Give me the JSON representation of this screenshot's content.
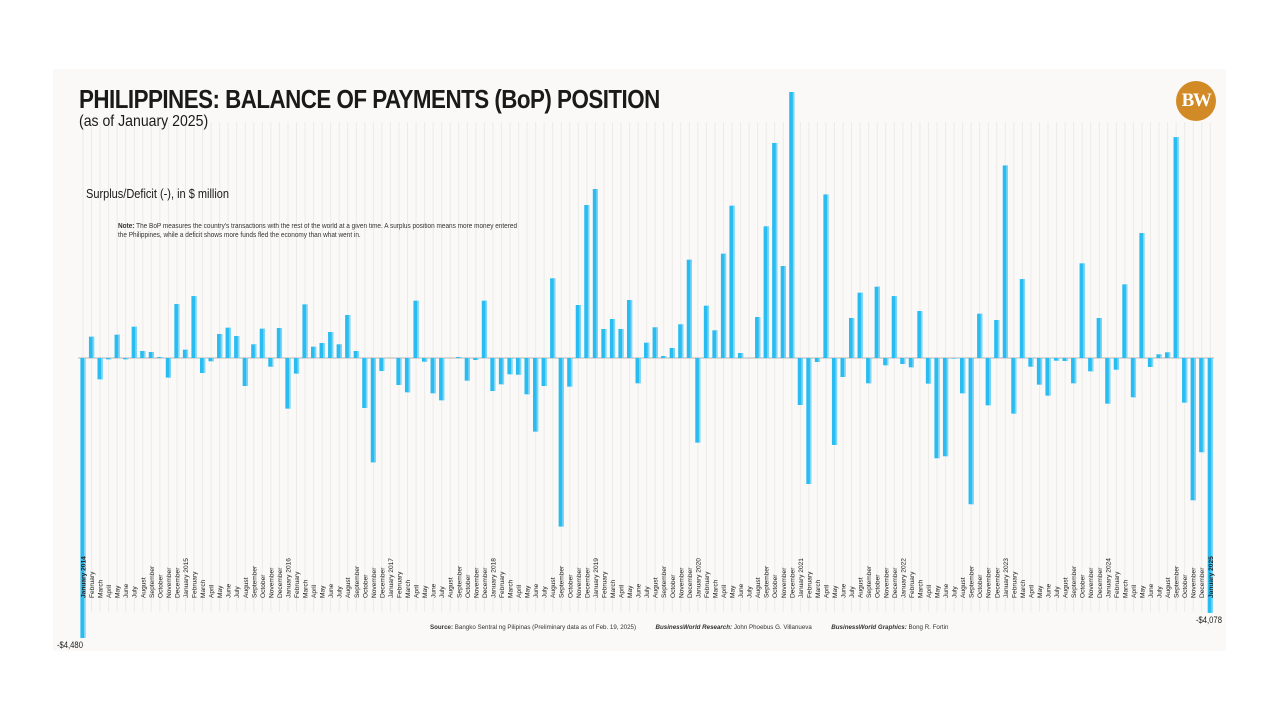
{
  "header": {
    "title": "PHILIPPINES: BALANCE OF PAYMENTS (BoP) POSITION",
    "subtitle": "(as of January 2025)",
    "logo_text": "BW"
  },
  "unit_label": "Surplus/Deficit (-), in $ million",
  "note": {
    "label": "Note:",
    "text": "The BoP measures the country's transactions with the rest of the world at a given time. A surplus position means more money entered the Philippines, while a deficit shows more funds fled the economy than what went in."
  },
  "footer": {
    "source_label": "Source:",
    "source_text": "Bangko Sentral ng Pilipinas (Preliminary data as of Feb. 19, 2025)",
    "research_label": "BusinessWorld Research:",
    "research_text": "John Phoebus G. Villanueva",
    "graphics_label": "BusinessWorld Graphics:",
    "graphics_text": "Bong R. Fortin"
  },
  "annotations": {
    "first_value": "-$4,480",
    "last_value": "-$4,078"
  },
  "colors": {
    "bar": "#29bcf0",
    "bar_highlight": "#7fd6f7",
    "gridline": "#ecebe8",
    "zero_line": "#b5b5b5",
    "logo": "#d28a26",
    "card_bg": "#faf9f7"
  },
  "chart_data": {
    "type": "bar",
    "title": "PHILIPPINES: BALANCE OF PAYMENTS (BoP) POSITION",
    "subtitle": "(as of January 2025)",
    "xlabel": "",
    "ylabel": "Surplus/Deficit (-), in $ million",
    "ylim": [
      -4480,
      4256
    ],
    "grid": "vertical",
    "legend": "none",
    "categories": [
      "January 2014",
      "February",
      "March",
      "April",
      "May",
      "June",
      "July",
      "August",
      "September",
      "October",
      "November",
      "December",
      "January 2015",
      "February",
      "March",
      "April",
      "May",
      "June",
      "July",
      "August",
      "September",
      "October",
      "November",
      "December",
      "January 2016",
      "February",
      "March",
      "April",
      "May",
      "June",
      "July",
      "August",
      "September",
      "October",
      "November",
      "December",
      "January 2017",
      "February",
      "March",
      "April",
      "May",
      "June",
      "July",
      "August",
      "September",
      "October",
      "November",
      "December",
      "January 2018",
      "February",
      "March",
      "April",
      "May",
      "June",
      "July",
      "August",
      "September",
      "October",
      "November",
      "December",
      "January 2019",
      "February",
      "March",
      "April",
      "May",
      "June",
      "July",
      "August",
      "September",
      "October",
      "November",
      "December",
      "January 2020",
      "February",
      "March",
      "April",
      "May",
      "June",
      "July",
      "August",
      "September",
      "October",
      "November",
      "December",
      "January 2021",
      "February",
      "March",
      "April",
      "May",
      "June",
      "July",
      "August",
      "September",
      "October",
      "November",
      "December",
      "January 2022",
      "February",
      "March",
      "April",
      "May",
      "June",
      "July",
      "August",
      "September",
      "October",
      "November",
      "December",
      "January 2023",
      "February",
      "March",
      "April",
      "May",
      "June",
      "July",
      "August",
      "September",
      "October",
      "November",
      "December",
      "January 2024",
      "February",
      "March",
      "April",
      "May",
      "June",
      "July",
      "August",
      "September",
      "October",
      "November",
      "December",
      "January 2025"
    ],
    "values": [
      -4480,
      341,
      -341,
      -21,
      373,
      -21,
      501,
      112,
      96,
      16,
      -314,
      863,
      133,
      991,
      -240,
      -53,
      384,
      485,
      352,
      -448,
      219,
      469,
      -139,
      480,
      -810,
      -250,
      858,
      181,
      240,
      416,
      219,
      688,
      112,
      -800,
      -1670,
      -208,
      0,
      -432,
      -549,
      917,
      -59,
      -565,
      -677,
      0,
      16,
      -362,
      -32,
      917,
      -528,
      -421,
      -261,
      -267,
      -581,
      -1178,
      -448,
      1275,
      -2697,
      -458,
      848,
      2448,
      2704,
      464,
      624,
      464,
      928,
      -405,
      245,
      491,
      32,
      160,
      539,
      1573,
      -1354,
      837,
      443,
      1669,
      2437,
      80,
      0,
      656,
      2107,
      3440,
      1472,
      4256,
      -752,
      -2015,
      -64,
      2617,
      -1391,
      -304,
      640,
      1045,
      -405,
      1141,
      -117,
      991,
      -96,
      -149,
      752,
      -410,
      -1604,
      -1572,
      -10,
      -565,
      -2340,
      709,
      -757,
      608,
      3081,
      -890,
      1263,
      -139,
      -426,
      -602,
      -43,
      -48,
      -405,
      1514,
      -213,
      640,
      -730,
      -187,
      1178,
      -629,
      1999,
      -144,
      59,
      91,
      3534,
      -714,
      -2276,
      -1508,
      -4078
    ],
    "annotations": [
      {
        "category": "January 2014",
        "text": "-$4,480"
      },
      {
        "category": "January 2025",
        "text": "-$4,078"
      }
    ]
  }
}
